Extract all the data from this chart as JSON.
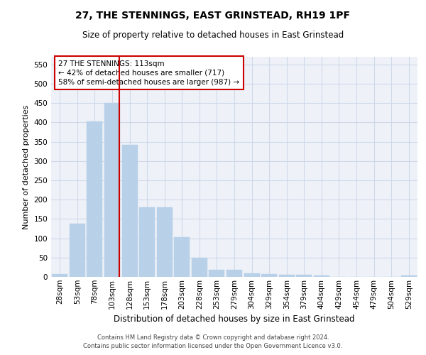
{
  "title": "27, THE STENNINGS, EAST GRINSTEAD, RH19 1PF",
  "subtitle": "Size of property relative to detached houses in East Grinstead",
  "xlabel": "Distribution of detached houses by size in East Grinstead",
  "ylabel": "Number of detached properties",
  "footer_line1": "Contains HM Land Registry data © Crown copyright and database right 2024.",
  "footer_line2": "Contains public sector information licensed under the Open Government Licence v3.0.",
  "categories": [
    "28sqm",
    "53sqm",
    "78sqm",
    "103sqm",
    "128sqm",
    "153sqm",
    "178sqm",
    "203sqm",
    "228sqm",
    "253sqm",
    "279sqm",
    "304sqm",
    "329sqm",
    "354sqm",
    "379sqm",
    "404sqm",
    "429sqm",
    "454sqm",
    "479sqm",
    "504sqm",
    "529sqm"
  ],
  "values": [
    8,
    138,
    402,
    450,
    342,
    180,
    180,
    103,
    50,
    18,
    18,
    10,
    8,
    5,
    5,
    4,
    0,
    0,
    0,
    0,
    3
  ],
  "bar_color": "#b8d0e8",
  "bar_edge_color": "#b8d0e8",
  "grid_color": "#d0d8e8",
  "bg_color": "#eef2f8",
  "annotation_text": "27 THE STENNINGS: 113sqm\n← 42% of detached houses are smaller (717)\n58% of semi-detached houses are larger (987) →",
  "annotation_box_color": "#ffffff",
  "annotation_border_color": "#cc0000",
  "ylim": [
    0,
    570
  ],
  "yticks": [
    0,
    50,
    100,
    150,
    200,
    250,
    300,
    350,
    400,
    450,
    500,
    550
  ],
  "title_fontsize": 10,
  "subtitle_fontsize": 8.5,
  "xlabel_fontsize": 8.5,
  "ylabel_fontsize": 8,
  "tick_fontsize": 7.5,
  "annotation_fontsize": 7.5,
  "footer_fontsize": 6
}
